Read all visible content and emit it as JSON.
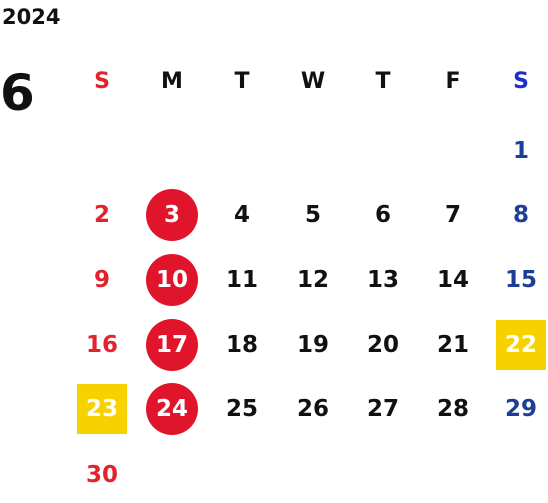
{
  "year": "2024",
  "month": "6",
  "weekday_labels": [
    "S",
    "M",
    "T",
    "W",
    "T",
    "F",
    "S"
  ],
  "weeks": [
    [
      "",
      "",
      "",
      "",
      "",
      "",
      "1"
    ],
    [
      "2",
      "3",
      "4",
      "5",
      "6",
      "7",
      "8"
    ],
    [
      "9",
      "10",
      "11",
      "12",
      "13",
      "14",
      "15"
    ],
    [
      "16",
      "17",
      "18",
      "19",
      "20",
      "21",
      "22"
    ],
    [
      "23",
      "24",
      "25",
      "26",
      "27",
      "28",
      "29"
    ],
    [
      "30",
      "",
      "",
      "",
      "",
      "",
      ""
    ]
  ],
  "highlights": {
    "red_circle_days": [
      "3",
      "10",
      "17",
      "24"
    ],
    "yellow_square_days": [
      "22",
      "23"
    ]
  },
  "colors": {
    "sunday": "#e0232c",
    "saturday": "#1c3f95",
    "saturday_header": "#1a2fd0",
    "default_text": "#111111",
    "circle_fill": "#e0152b",
    "square_fill": "#f8d200",
    "marked_text": "#ffffff"
  }
}
